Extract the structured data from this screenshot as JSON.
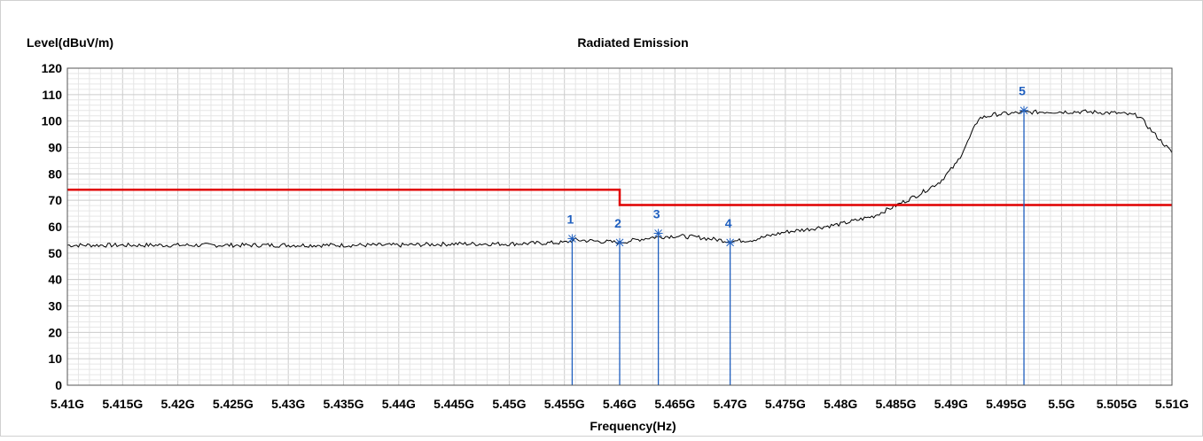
{
  "chart_data": {
    "type": "line",
    "title": "Radiated Emission",
    "ylabel": "Level(dBuV/m)",
    "xlabel": "Frequency(Hz)",
    "ylim": [
      0,
      120
    ],
    "xlim": [
      5.41,
      5.51
    ],
    "grid": true,
    "y_ticks": [
      "0",
      "10",
      "20",
      "30",
      "40",
      "50",
      "60",
      "70",
      "80",
      "90",
      "100",
      "110",
      "120"
    ],
    "x_ticks": [
      "5.41G",
      "5.415G",
      "5.42G",
      "5.425G",
      "5.43G",
      "5.435G",
      "5.44G",
      "5.445G",
      "5.45G",
      "5.455G",
      "5.46G",
      "5.465G",
      "5.47G",
      "5.475G",
      "5.48G",
      "5.485G",
      "5.49G",
      "5.495G",
      "5.5G",
      "5.505G",
      "5.51G"
    ],
    "series": [
      {
        "color": "#000000",
        "x": [
          5.41,
          5.415,
          5.42,
          5.425,
          5.43,
          5.435,
          5.44,
          5.445,
          5.45,
          5.455,
          5.456,
          5.46,
          5.463,
          5.465,
          5.467,
          5.47,
          5.472,
          5.475,
          5.477,
          5.48,
          5.483,
          5.485,
          5.487,
          5.489,
          5.4905,
          5.4915,
          5.4925,
          5.494,
          5.4965,
          5.4985,
          5.5,
          5.502,
          5.505,
          5.507,
          5.508,
          5.51
        ],
        "y": [
          53,
          53,
          53,
          53,
          53,
          53,
          53,
          53.5,
          53.5,
          54,
          55,
          54,
          56,
          56.5,
          56,
          54.5,
          55,
          58,
          59,
          61,
          64,
          68,
          72,
          77,
          84,
          92,
          101,
          102.5,
          103.2,
          103.5,
          103.5,
          103.5,
          103,
          102,
          97,
          88
        ]
      },
      {
        "color": "#e00000",
        "x": [
          5.41,
          5.46,
          5.46,
          5.51
        ],
        "y": [
          74,
          74,
          68.2,
          68.2
        ]
      }
    ],
    "markers": [
      {
        "label": "1",
        "x": 5.4557,
        "y": 55.5
      },
      {
        "label": "2",
        "x": 5.46,
        "y": 54
      },
      {
        "label": "3",
        "x": 5.4635,
        "y": 57.5
      },
      {
        "label": "4",
        "x": 5.47,
        "y": 54
      },
      {
        "label": "5",
        "x": 5.4966,
        "y": 104
      }
    ],
    "colors": {
      "trace": "#000000",
      "limit": "#e00000",
      "marker": "#1f5fbf",
      "grid_minor": "#e6e6e6",
      "grid_major": "#cccccc"
    }
  }
}
